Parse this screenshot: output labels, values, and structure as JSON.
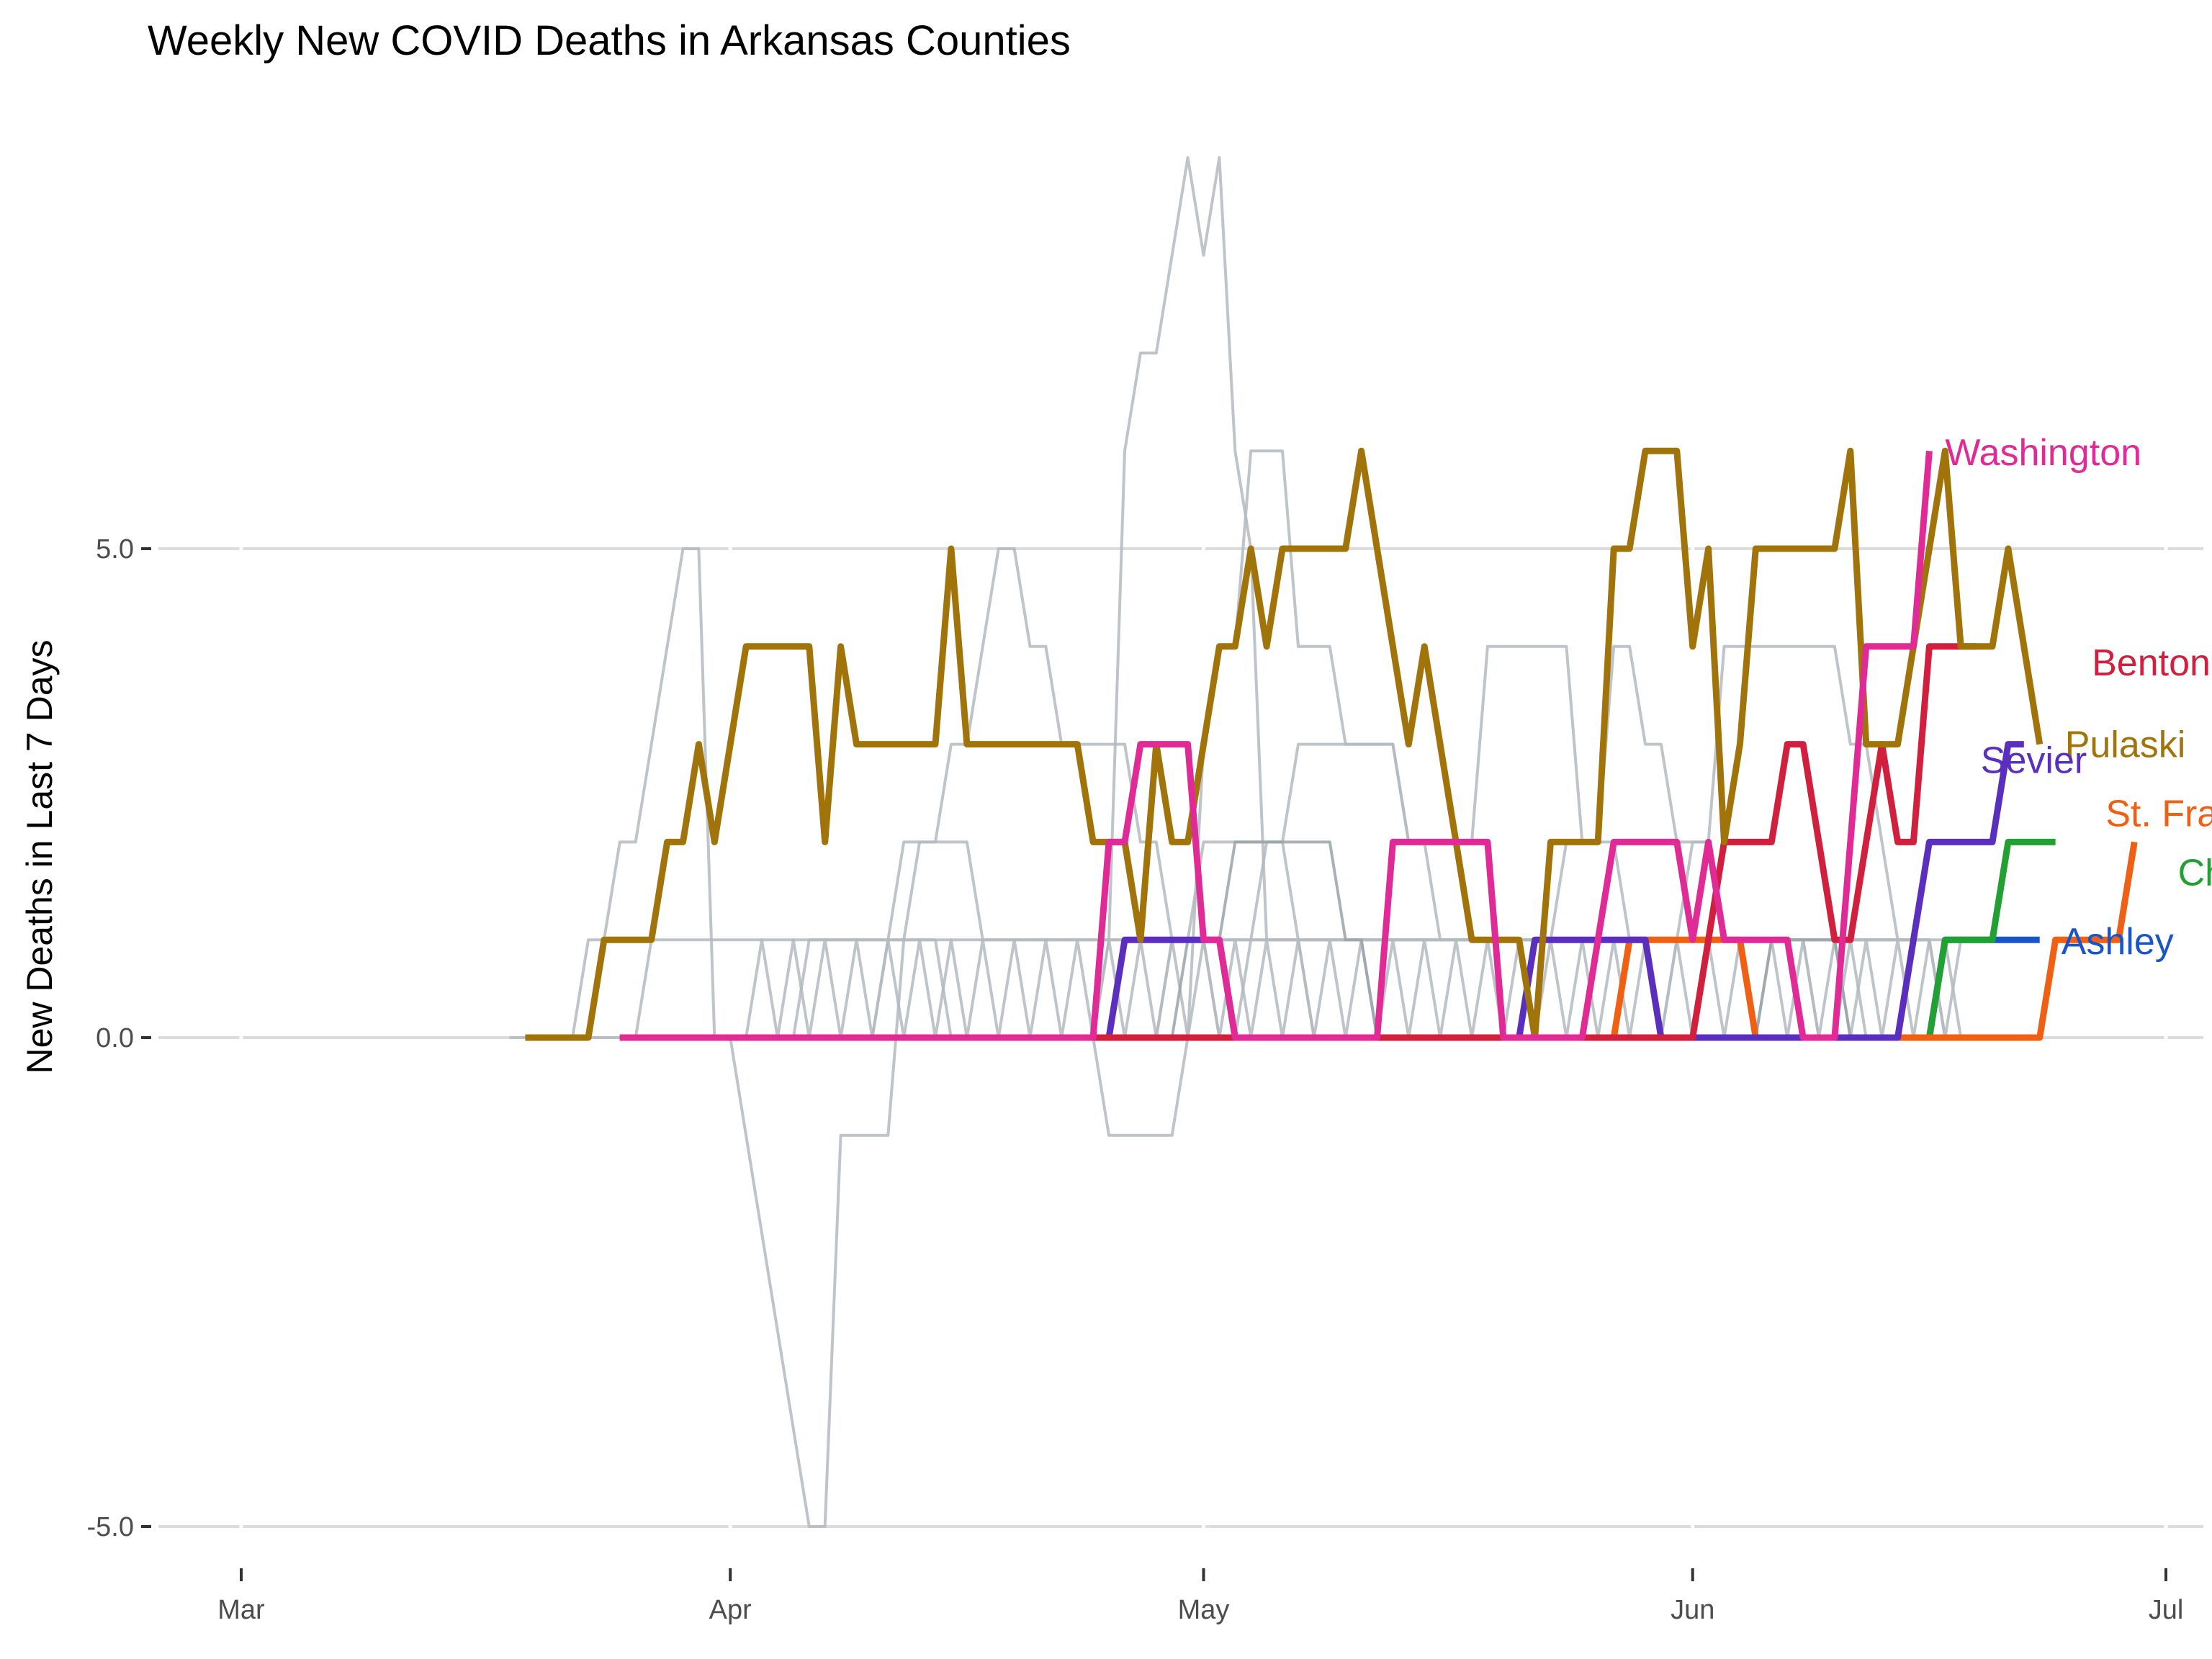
{
  "chart_data": {
    "type": "line",
    "title": "Weekly New COVID Deaths in Arkansas Counties",
    "xlabel": "",
    "ylabel": "New Deaths in Last 7 Days",
    "x_unit": "date",
    "xlim": [
      "2020-03-01",
      "2020-07-01"
    ],
    "ylim": [
      -5.6,
      9.3
    ],
    "x_ticks": [
      {
        "label": "Mar",
        "date": "2020-03-01"
      },
      {
        "label": "Apr",
        "date": "2020-04-01"
      },
      {
        "label": "May",
        "date": "2020-05-01"
      },
      {
        "label": "Jun",
        "date": "2020-06-01"
      },
      {
        "label": "Jul",
        "date": "2020-07-01"
      }
    ],
    "y_ticks": [
      {
        "label": "-5.0",
        "value": -5
      },
      {
        "label": "0.0",
        "value": 0
      },
      {
        "label": "5.0",
        "value": 5
      }
    ],
    "grid": "horizontal",
    "legend": "direct labels at line ends",
    "background_series": [
      {
        "color": "#b3bac0",
        "start": "2020-03-18",
        "values": [
          0,
          0,
          0,
          0,
          0,
          1,
          1,
          2,
          2,
          3,
          4,
          5,
          5,
          0,
          0,
          0,
          0,
          0,
          0,
          1,
          1,
          1,
          1,
          1,
          1,
          1,
          1,
          1,
          0,
          0,
          0,
          0,
          0,
          0,
          0,
          0,
          0,
          0,
          0,
          0,
          0,
          0,
          0,
          0,
          0,
          0,
          0,
          0,
          0,
          0,
          0,
          0,
          0,
          0,
          0,
          0,
          0,
          0,
          0,
          0,
          0,
          0,
          0,
          0,
          0,
          0,
          0,
          0,
          0,
          0,
          0,
          0,
          0,
          0,
          0,
          0,
          0,
          0,
          0,
          0,
          0,
          0,
          0,
          0,
          0,
          0,
          0,
          0,
          0,
          0,
          0,
          0
        ]
      },
      {
        "color": "#b3bac0",
        "start": "2020-04-01",
        "values": [
          0,
          -1,
          -2,
          -3,
          -4,
          -5,
          -5,
          -1,
          -1,
          -1,
          -1,
          1,
          2,
          2,
          2,
          2,
          1,
          1,
          1,
          1,
          1,
          1,
          1,
          1,
          1,
          1,
          1,
          1,
          1,
          1,
          1,
          1,
          1,
          1,
          1,
          1,
          1,
          1,
          1,
          1,
          1,
          1,
          1,
          1,
          1,
          1,
          1,
          1,
          1,
          1,
          1,
          1,
          1,
          1,
          1,
          1,
          1,
          1,
          1,
          1,
          1,
          1,
          1,
          1,
          1,
          1,
          1,
          1,
          1,
          1,
          1,
          1,
          1,
          1,
          1,
          1,
          1,
          1,
          0
        ]
      },
      {
        "color": "#b3bac0",
        "start": "2020-04-22",
        "values": [
          0,
          0,
          0,
          1,
          6,
          7,
          7,
          8,
          9,
          8,
          9,
          6,
          5,
          1,
          1,
          1,
          1,
          1,
          1,
          1,
          1,
          1,
          1,
          1,
          1,
          1,
          1,
          1,
          1,
          1,
          1,
          1,
          1,
          1,
          1,
          1,
          1,
          1,
          1,
          1,
          1,
          1,
          1,
          1,
          1,
          1,
          1,
          1,
          1,
          1,
          1,
          1,
          1,
          1,
          1
        ]
      },
      {
        "color": "#b3bac0",
        "start": "2020-04-22",
        "values": [
          0,
          0,
          0,
          -1,
          -1,
          -1,
          -1,
          -1,
          0,
          3,
          4,
          4,
          6,
          6,
          6,
          4,
          4,
          4,
          3,
          3,
          3,
          3,
          2,
          2,
          2,
          2,
          2,
          4,
          4,
          4,
          4,
          4,
          4,
          2,
          2,
          4,
          4,
          3,
          3,
          2,
          2,
          2,
          4,
          4,
          4,
          4,
          4,
          4,
          4,
          4,
          3,
          3,
          2,
          1,
          1,
          1
        ]
      },
      {
        "color": "#b3bac0",
        "start": "2020-04-10",
        "values": [
          0,
          1,
          2,
          2,
          2,
          3,
          3,
          4,
          5,
          5,
          4,
          4,
          3,
          3,
          3,
          3,
          3,
          2,
          2,
          1,
          1,
          1,
          0,
          0,
          1,
          2,
          2,
          3,
          3,
          3,
          3,
          3,
          3,
          3,
          2,
          2,
          1,
          1,
          1,
          1,
          1,
          1,
          1,
          1,
          2,
          2,
          2,
          2,
          1,
          1,
          1,
          1,
          1,
          1,
          1,
          1,
          1,
          1,
          1,
          1,
          0,
          0,
          1,
          1,
          1,
          1,
          1,
          1
        ]
      },
      {
        "color": "#b3bac0",
        "start": "2020-03-20",
        "values": [
          0,
          0,
          0,
          0,
          0,
          0,
          0,
          0,
          0,
          0,
          0,
          0,
          0,
          0,
          1,
          0,
          1,
          0,
          1,
          0,
          1,
          0,
          1,
          0,
          1,
          0,
          1,
          0,
          1,
          0,
          1,
          0,
          1,
          0,
          1,
          0,
          1,
          0,
          1,
          0,
          1,
          0,
          1,
          0,
          1,
          0,
          1,
          0,
          1,
          0,
          1,
          0,
          1,
          0,
          1,
          0,
          1,
          0,
          1,
          0,
          1,
          0,
          1,
          0,
          1,
          0,
          1,
          0,
          1,
          0,
          1,
          0,
          1,
          0,
          1,
          0,
          1,
          0,
          1,
          0,
          1,
          0,
          1,
          0,
          1,
          0,
          1,
          0,
          1,
          0,
          1
        ]
      },
      {
        "color": "#b3bac0",
        "start": "2020-03-26",
        "values": [
          0,
          1,
          1,
          1,
          1,
          1,
          1,
          1,
          1,
          1,
          1,
          1,
          1,
          1,
          1,
          1,
          1,
          1,
          1,
          1,
          1,
          1,
          1,
          1,
          1,
          1,
          1,
          1,
          1,
          1,
          1,
          1,
          1,
          1,
          1,
          1,
          1,
          1,
          1,
          1,
          1,
          1,
          1,
          1,
          1,
          1,
          1,
          1,
          1,
          1,
          1,
          1,
          1,
          1,
          1,
          1,
          1,
          1,
          1,
          1,
          1,
          1,
          1,
          1,
          1,
          1,
          1,
          1,
          1,
          1,
          1,
          1,
          1,
          1,
          1,
          1,
          1,
          1,
          1,
          1,
          1,
          1,
          1,
          0
        ]
      },
      {
        "color": "#b3bac0",
        "start": "2020-04-24",
        "values": [
          0,
          0,
          0,
          0,
          0,
          1,
          1,
          2,
          2,
          2,
          2,
          2,
          2,
          1,
          0,
          0,
          0,
          0,
          0,
          0,
          0,
          0,
          0,
          0,
          0,
          0,
          0,
          0,
          0,
          0,
          0,
          0,
          0,
          0,
          0,
          0,
          0,
          1,
          2,
          2,
          1,
          1,
          1,
          1,
          1,
          1,
          1,
          1,
          1,
          0,
          0,
          0,
          0
        ]
      },
      {
        "color": "#9aa3aa",
        "start": "2020-04-28",
        "values": [
          0,
          0,
          1,
          1,
          1,
          2,
          2,
          2,
          2,
          2,
          2,
          2,
          1,
          1,
          0,
          0,
          0,
          0,
          0,
          0,
          0,
          0,
          0,
          0,
          0,
          0,
          0,
          0,
          0,
          0,
          0,
          0,
          0,
          0,
          0,
          0,
          0,
          0,
          0,
          1,
          1,
          1,
          1,
          1,
          0,
          0,
          0,
          0,
          0
        ]
      }
    ],
    "series": [
      {
        "name": "Pulaski",
        "color": "#a0740a",
        "start": "2020-03-19",
        "values": [
          0,
          0,
          0,
          0,
          0,
          1,
          1,
          1,
          1,
          2,
          2,
          3,
          2,
          3,
          4,
          4,
          4,
          4,
          4,
          2,
          4,
          3,
          3,
          3,
          3,
          3,
          3,
          5,
          3,
          3,
          3,
          3,
          3,
          3,
          3,
          3,
          2,
          2,
          2,
          1,
          3,
          2,
          2,
          3,
          4,
          4,
          5,
          4,
          5,
          5,
          5,
          5,
          5,
          6,
          5,
          4,
          3,
          4,
          3,
          2,
          1,
          1,
          1,
          1,
          0,
          2,
          2,
          2,
          2,
          5,
          5,
          6,
          6,
          6,
          4,
          5,
          2,
          3,
          5,
          5,
          5,
          5,
          5,
          5,
          6,
          3,
          3,
          3,
          4,
          5,
          6,
          4,
          4,
          4,
          5,
          4,
          3
        ]
      },
      {
        "name": "Washington",
        "color": "#e02a95",
        "start": "2020-03-25",
        "values": [
          0,
          0,
          0,
          0,
          0,
          0,
          0,
          0,
          0,
          0,
          0,
          0,
          0,
          0,
          0,
          0,
          0,
          0,
          0,
          0,
          0,
          0,
          0,
          0,
          0,
          0,
          0,
          0,
          0,
          0,
          0,
          2,
          2,
          3,
          3,
          3,
          3,
          1,
          1,
          0,
          0,
          0,
          0,
          0,
          0,
          0,
          0,
          0,
          0,
          2,
          2,
          2,
          2,
          2,
          2,
          2,
          0,
          0,
          0,
          0,
          0,
          0,
          1,
          2,
          2,
          2,
          2,
          2,
          1,
          2,
          1,
          1,
          1,
          1,
          1,
          0,
          0,
          0,
          2,
          4,
          4,
          4,
          4,
          6
        ]
      },
      {
        "name": "Benton",
        "color": "#d0203e",
        "start": "2020-03-25",
        "values": [
          0,
          0,
          0,
          0,
          0,
          0,
          0,
          0,
          0,
          0,
          0,
          0,
          0,
          0,
          0,
          0,
          0,
          0,
          0,
          0,
          0,
          0,
          0,
          0,
          0,
          0,
          0,
          0,
          0,
          0,
          0,
          0,
          0,
          0,
          0,
          0,
          0,
          0,
          0,
          0,
          0,
          0,
          0,
          0,
          0,
          0,
          0,
          0,
          0,
          0,
          0,
          0,
          0,
          0,
          0,
          0,
          0,
          0,
          0,
          0,
          0,
          0,
          0,
          0,
          0,
          0,
          0,
          0,
          0,
          1,
          2,
          2,
          2,
          2,
          3,
          3,
          2,
          1,
          1,
          2,
          3,
          2,
          2,
          4,
          4,
          4,
          4
        ]
      },
      {
        "name": "Sevier",
        "color": "#5b2fbd",
        "start": "2020-04-24",
        "values": [
          0,
          0,
          1,
          1,
          1,
          1,
          1,
          1,
          1,
          0,
          0,
          0,
          0,
          0,
          0,
          0,
          0,
          0,
          0,
          0,
          0,
          0,
          0,
          0,
          0,
          0,
          0,
          0,
          1,
          1,
          1,
          1,
          1,
          1,
          1,
          1,
          0,
          0,
          0,
          0,
          0,
          0,
          0,
          0,
          0,
          0,
          0,
          0,
          0,
          0,
          0,
          0,
          1,
          2,
          2,
          2,
          2,
          2,
          3,
          3
        ]
      },
      {
        "name": "St. Francis",
        "color": "#f06014",
        "start": "2020-03-25",
        "values": [
          0,
          0,
          0,
          0,
          0,
          0,
          0,
          0,
          0,
          0,
          0,
          0,
          0,
          0,
          0,
          0,
          0,
          0,
          0,
          0,
          0,
          0,
          0,
          0,
          0,
          0,
          0,
          0,
          0,
          0,
          0,
          0,
          0,
          0,
          0,
          0,
          0,
          0,
          0,
          0,
          0,
          0,
          0,
          0,
          0,
          0,
          0,
          0,
          0,
          0,
          0,
          0,
          0,
          0,
          0,
          0,
          0,
          0,
          0,
          0,
          0,
          0,
          0,
          0,
          1,
          1,
          1,
          1,
          1,
          1,
          1,
          1,
          0,
          0,
          0,
          0,
          0,
          0,
          0,
          0,
          0,
          0,
          0,
          0,
          0,
          0,
          0,
          0,
          0,
          0,
          0,
          1,
          1,
          1,
          1,
          1,
          2
        ]
      },
      {
        "name": "Chicot",
        "color": "#23a033",
        "start": "2020-05-25",
        "values": [
          0,
          0,
          0,
          0,
          0,
          0,
          0,
          0,
          0,
          0,
          0,
          0,
          0,
          0,
          0,
          0,
          0,
          0,
          0,
          0,
          0,
          0,
          0,
          1,
          1,
          1,
          1,
          2,
          2,
          2,
          2
        ]
      },
      {
        "name": "Ashley",
        "color": "#1a55c8",
        "start": "2020-05-26",
        "values": [
          0,
          0,
          0,
          0,
          0,
          0,
          0,
          0,
          0,
          0,
          0,
          0,
          0,
          0,
          0,
          0,
          0,
          0,
          0,
          0,
          0,
          0,
          1,
          1,
          1,
          1,
          1,
          1,
          1
        ]
      }
    ]
  }
}
